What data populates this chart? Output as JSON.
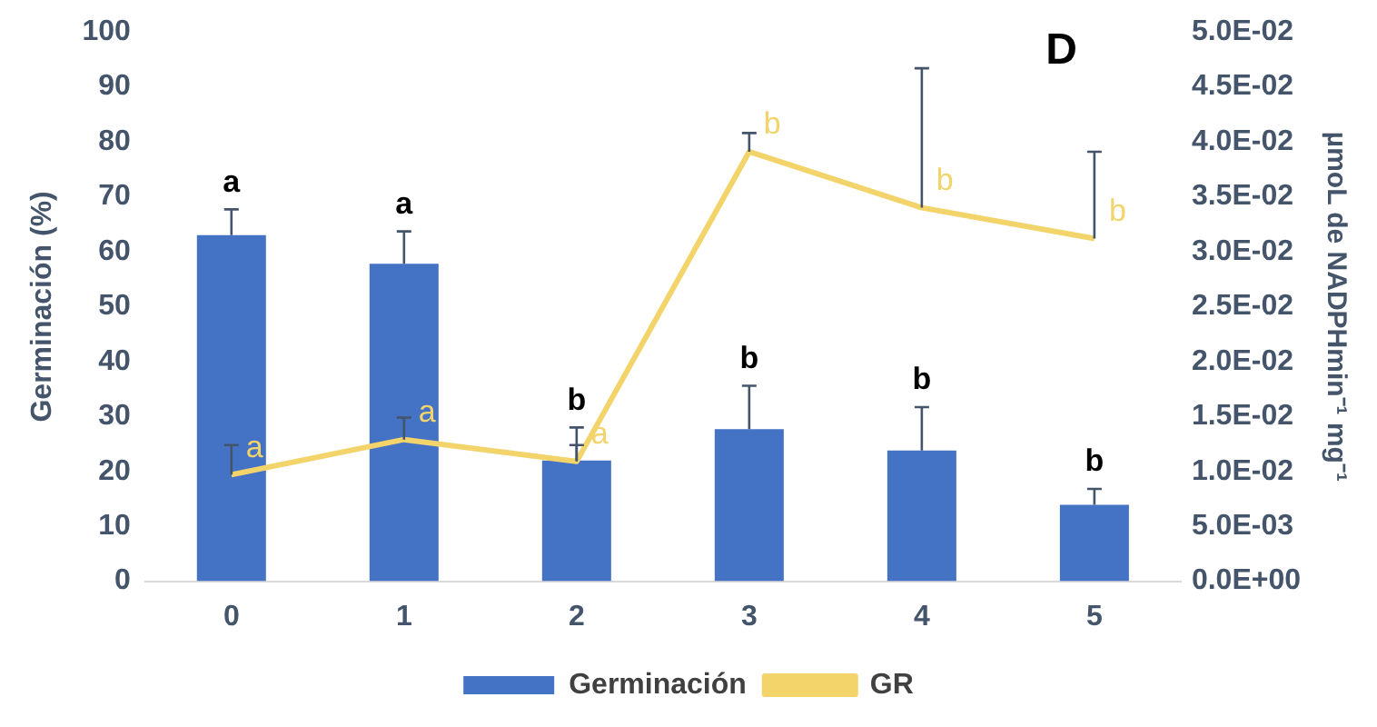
{
  "chart_data": {
    "type": "bar",
    "categories": [
      "0",
      "1",
      "2",
      "3",
      "4",
      "5"
    ],
    "series": [
      {
        "name": "Germinación",
        "color": "#4472c4",
        "values": [
          63,
          57.8,
          22,
          27.7,
          23.8,
          13.9
        ],
        "errors": [
          [
            63,
            67.7
          ],
          [
            57.8,
            63.7
          ],
          [
            22,
            28
          ],
          [
            27.7,
            35.6
          ],
          [
            23.8,
            31.7
          ],
          [
            13.9,
            16.8
          ]
        ],
        "value_labels": [
          "a",
          "a",
          "b",
          "b",
          "b",
          "b"
        ]
      },
      {
        "name": "GR",
        "type": "line",
        "axis": "y2",
        "color": "#f2d46b",
        "values": [
          0.0097,
          0.0129,
          0.0109,
          0.0391,
          0.034,
          0.0312
        ],
        "errors": [
          [
            0.0097,
            0.0124
          ],
          [
            0.0129,
            0.0149
          ],
          [
            0.0109,
            0.0124
          ],
          [
            0.0391,
            0.0408
          ],
          [
            0.034,
            0.0467
          ],
          [
            0.0312,
            0.0391
          ]
        ],
        "value_labels": [
          "a",
          "a",
          "a",
          "b",
          "b",
          "b"
        ]
      }
    ],
    "ylabel": "Germinación (%)",
    "y2label": "µmoL de NADPHmin⁻¹ mg⁻¹",
    "ylim": [
      0,
      100
    ],
    "yticks": [
      0,
      10,
      20,
      30,
      40,
      50,
      60,
      70,
      80,
      90,
      100
    ],
    "y2lim": [
      0,
      0.05
    ],
    "y2ticks": [
      {
        "value": 0,
        "label": "0.0E+00"
      },
      {
        "value": 0.005,
        "label": "5.0E-03"
      },
      {
        "value": 0.01,
        "label": "1.0E-02"
      },
      {
        "value": 0.015,
        "label": "1.5E-02"
      },
      {
        "value": 0.02,
        "label": "2.0E-02"
      },
      {
        "value": 0.025,
        "label": "2.5E-02"
      },
      {
        "value": 0.03,
        "label": "3.0E-02"
      },
      {
        "value": 0.035,
        "label": "3.5E-02"
      },
      {
        "value": 0.04,
        "label": "4.0E-02"
      },
      {
        "value": 0.045,
        "label": "4.5E-02"
      },
      {
        "value": 0.05,
        "label": "5.0E-02"
      }
    ],
    "annotations": [
      "D"
    ],
    "legend": "bottom",
    "grid": false,
    "marker": "none"
  }
}
